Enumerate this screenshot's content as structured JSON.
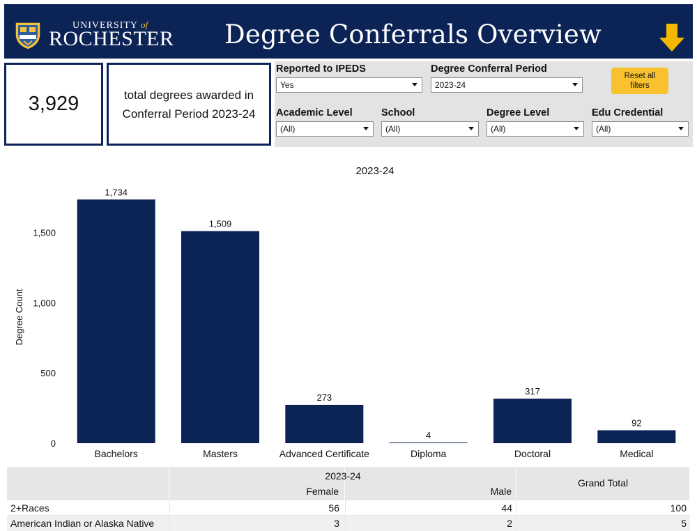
{
  "header": {
    "logo_small": "UNIVERSITY",
    "logo_of": "of",
    "logo_big": "ROCHESTER",
    "title": "Degree Conferrals Overview",
    "icon": "download-arrow-icon",
    "colors": {
      "navy": "#0c2356",
      "gold": "#f5b800",
      "white": "#ffffff"
    }
  },
  "kpi": {
    "value": "3,929",
    "line1": "total degrees awarded in",
    "line2": "Conferral Period 2023-24"
  },
  "filters": {
    "reported": {
      "label": "Reported to IPEDS",
      "value": "Yes"
    },
    "period": {
      "label": "Degree Conferral Period",
      "value": "2023-24"
    },
    "reset": {
      "line1": "Reset all",
      "line2": "filters"
    },
    "academic": {
      "label": "Academic Level",
      "value": "(All)"
    },
    "school": {
      "label": "School",
      "value": "(All)"
    },
    "degree_level": {
      "label": "Degree Level",
      "value": "(All)"
    },
    "credential": {
      "label": "Edu Credential",
      "value": "(All)"
    }
  },
  "chart_data": {
    "type": "bar",
    "title": "2023-24",
    "ylabel": "Degree Count",
    "categories": [
      "Bachelors",
      "Masters",
      "Advanced Certificate",
      "Diploma",
      "Doctoral",
      "Medical"
    ],
    "values": [
      1734,
      1509,
      273,
      4,
      317,
      92
    ],
    "value_labels": [
      "1,734",
      "1,509",
      "273",
      "4",
      "317",
      "92"
    ],
    "yticks": [
      0,
      500,
      1000,
      1500
    ],
    "ytick_labels": [
      "0",
      "500",
      "1,000",
      "1,500"
    ],
    "ylim": [
      0,
      1800
    ],
    "bar_color": "#0c2356",
    "grid": false
  },
  "table": {
    "period_header": "2023-24",
    "col_female": "Female",
    "col_male": "Male",
    "col_total": "Grand Total",
    "rows": [
      {
        "label": "2+Races",
        "female": "56",
        "male": "44",
        "total": "100"
      },
      {
        "label": "American Indian or Alaska Native",
        "female": "3",
        "male": "2",
        "total": "5"
      }
    ]
  }
}
